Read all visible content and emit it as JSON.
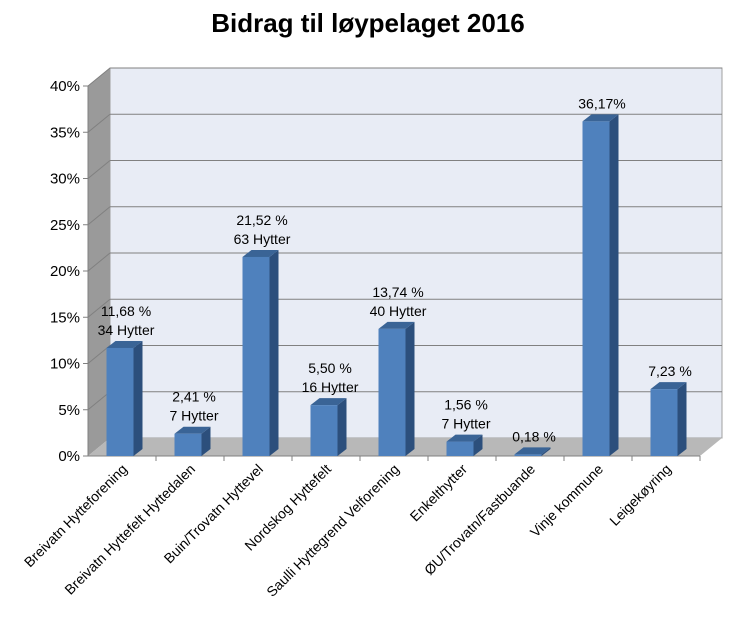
{
  "chart_data": {
    "type": "bar",
    "title": "Bidrag til løypelaget 2016",
    "xlabel": "",
    "ylabel": "",
    "ylim": [
      0,
      40
    ],
    "y_unit": "%",
    "yticks": [
      "0%",
      "5%",
      "10%",
      "15%",
      "20%",
      "25%",
      "30%",
      "35%",
      "40%"
    ],
    "grid": true,
    "legend": "none",
    "categories": [
      "Breivatn Hytteforening",
      "Breivatn Hyttefelt Hyttedalen",
      "Buin/Trovatn Hyttevel",
      "Nordskog Hyttefelt",
      "Saulli Hyttegrend Velforening",
      "Enkelthytter",
      "ØU/Trovatn/Fastbuande",
      "Vinje kommune",
      "Leigekøyring"
    ],
    "values": [
      11.68,
      2.41,
      21.52,
      5.5,
      13.74,
      1.56,
      0.18,
      36.17,
      7.23
    ],
    "data_labels": [
      [
        "11,68 %",
        "34 Hytter"
      ],
      [
        "2,41 %",
        "7 Hytter"
      ],
      [
        "21,52 %",
        "63 Hytter"
      ],
      [
        "5,50 %",
        "16 Hytter"
      ],
      [
        "13,74 %",
        "40 Hytter"
      ],
      [
        "1,56 %",
        "7 Hytter"
      ],
      [
        "0,18 %"
      ],
      [
        "36,17%"
      ],
      [
        "7,23 %"
      ]
    ],
    "colors": {
      "bar_front": "#4f81bd",
      "bar_side": "#2c4f7c",
      "bar_top": "#3a6496",
      "back_wall": "#e8ecf5",
      "side_wall": "#9a9a9a",
      "floor": "#b8b8b8",
      "grid": "#808080"
    }
  }
}
